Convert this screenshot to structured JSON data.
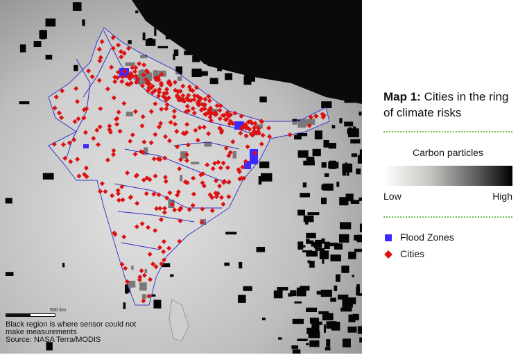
{
  "title_label": "Map 1:",
  "title": "Cities in the ring of climate risks",
  "legend": {
    "scale_title": "Carbon particles",
    "low": "Low",
    "high": "High",
    "items": [
      "Flood Zones",
      "Cities"
    ]
  },
  "map": {
    "scale_label": "500 km",
    "note": "Black region is where sensor could not make measurements",
    "source": "Source: NASA Terra/MODIS"
  }
}
